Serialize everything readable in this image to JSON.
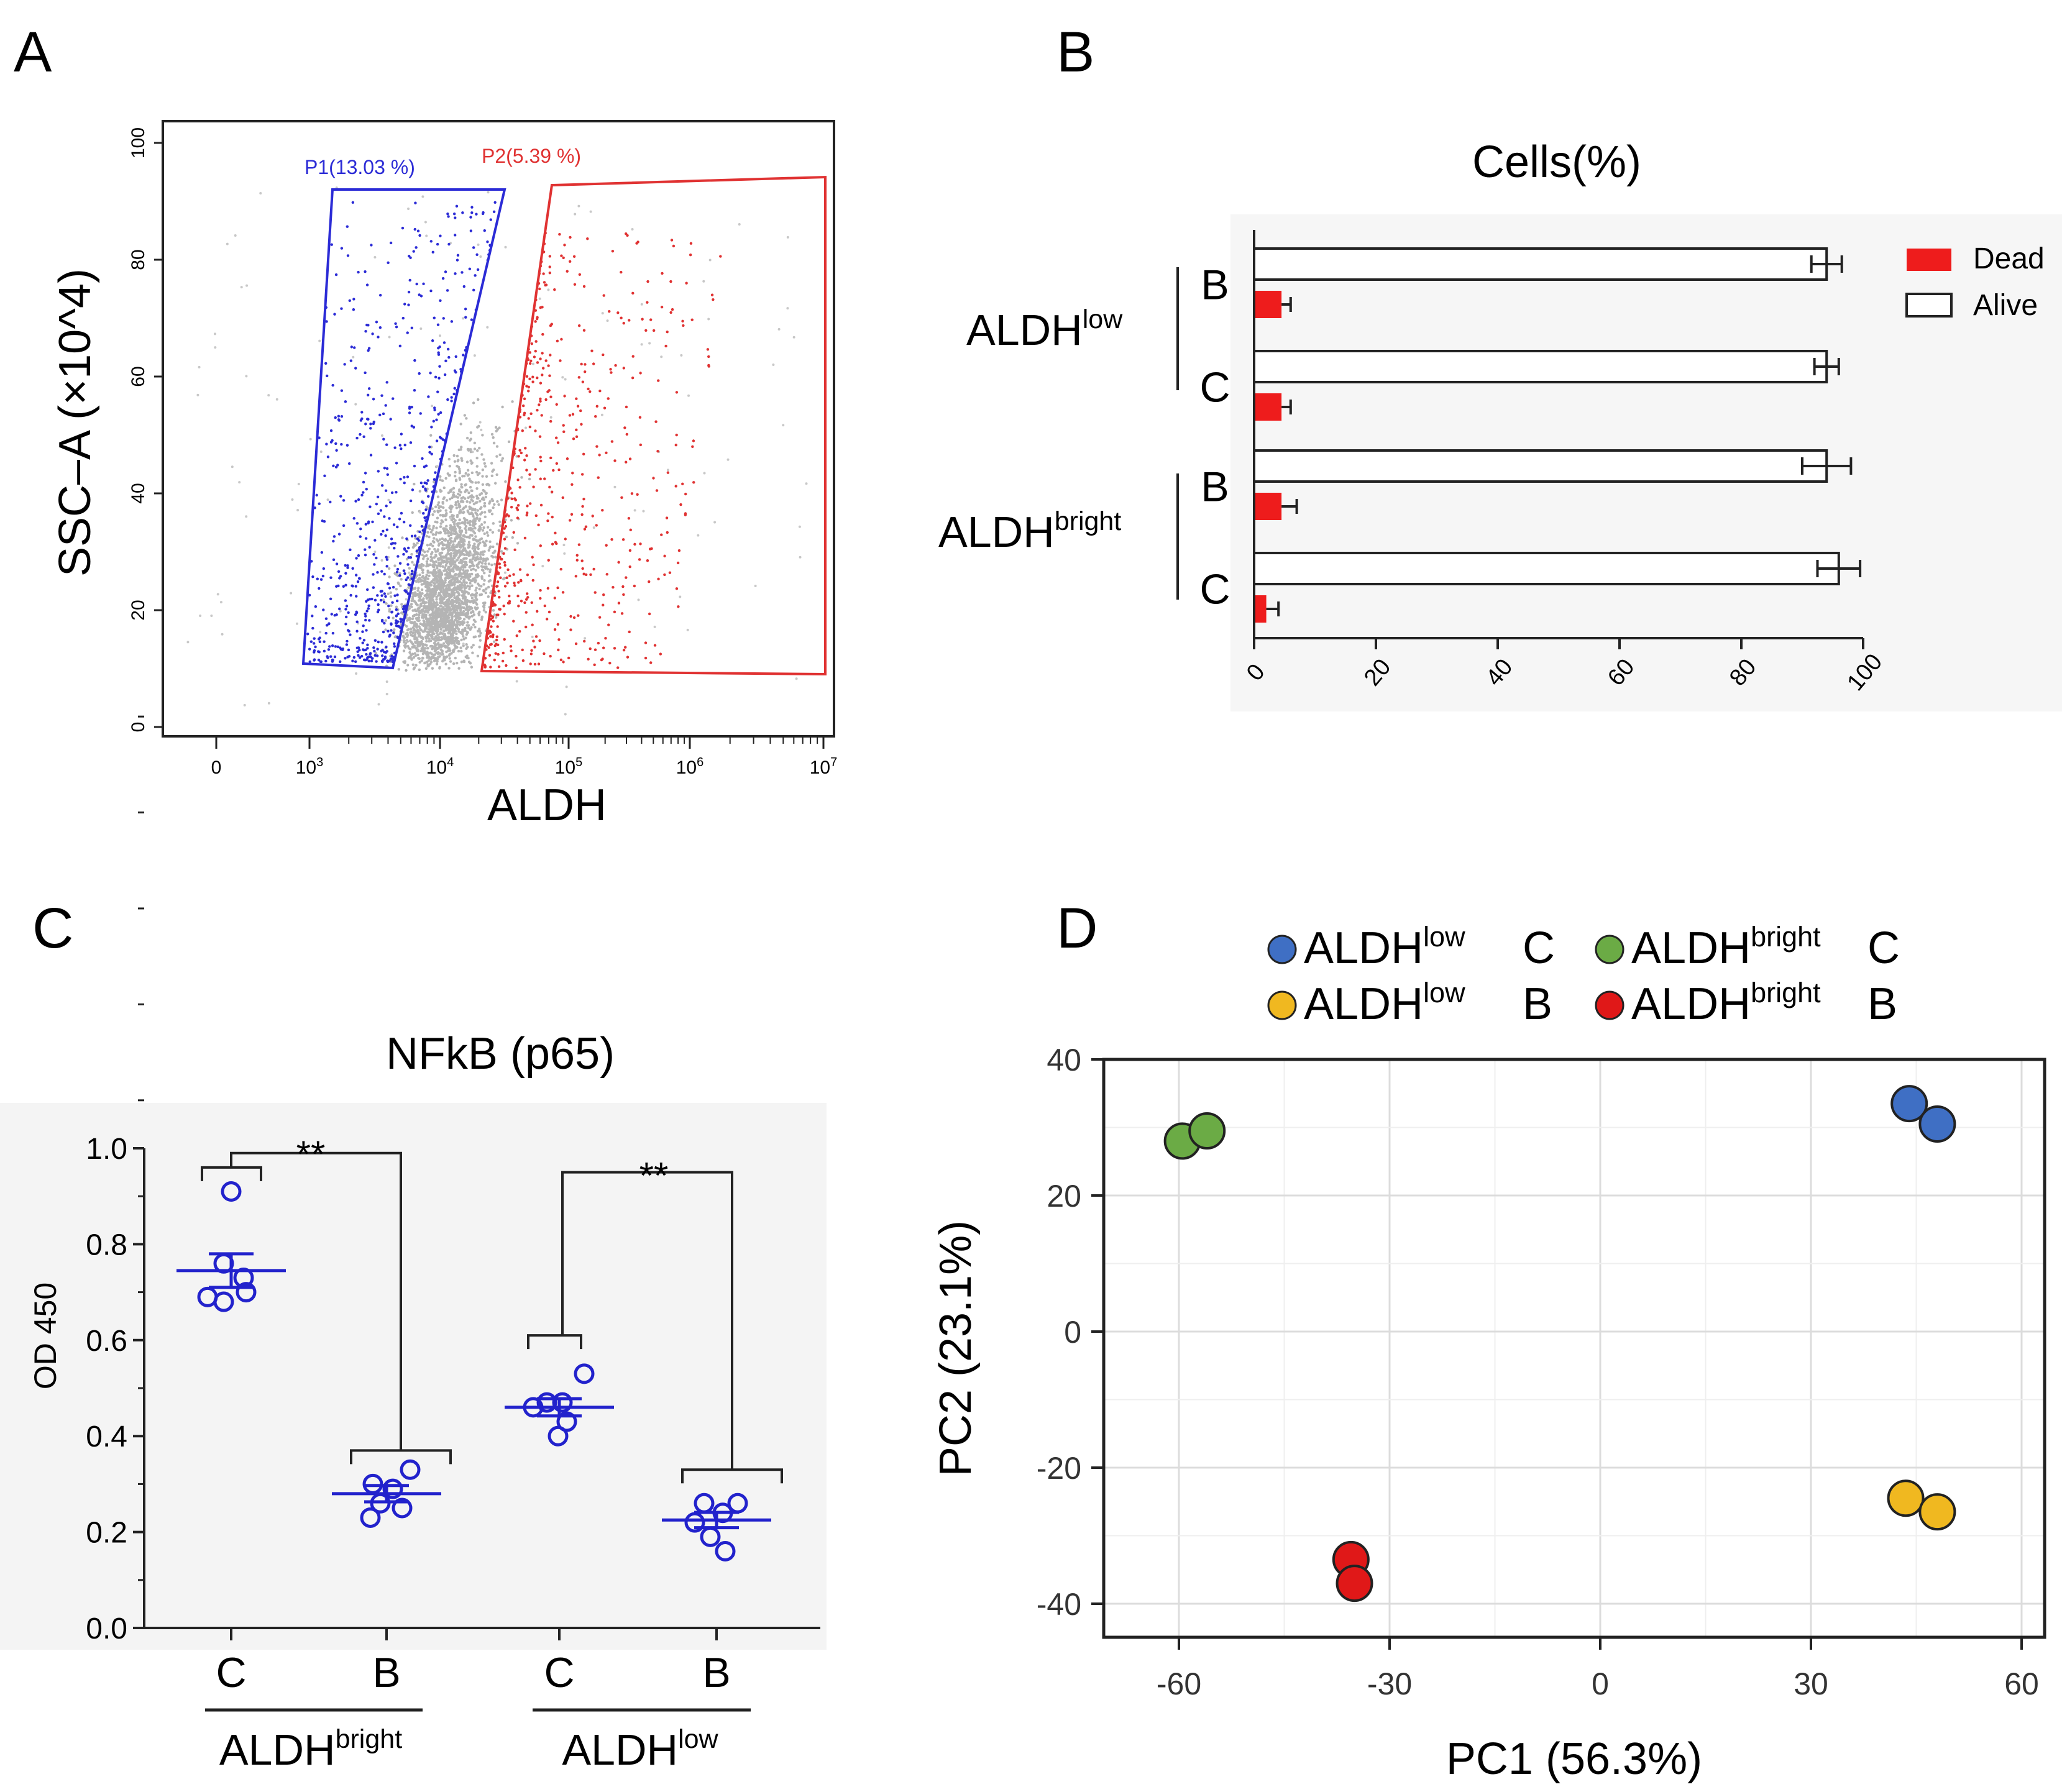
{
  "colors": {
    "blue_gate": "#2b2bd6",
    "red_gate": "#e03232",
    "grey_dots": "#b4b4b4",
    "bar_red": "#ee1c1c",
    "dot_blue": "#2222cc",
    "pca_blue": "#3f6fc4",
    "pca_green": "#6bab45",
    "pca_yellow": "#f0b820",
    "pca_red": "#e01818"
  },
  "chart_data": [
    {
      "panel": "A",
      "type": "scatter",
      "xlabel": "ALDH",
      "ylabel": "SSC–A (×10^4)",
      "ylim": [
        0,
        100
      ],
      "yticks": [
        "0",
        "20",
        "40",
        "60",
        "80",
        "100"
      ],
      "xticks": [
        {
          "base": "0",
          "exp": ""
        },
        {
          "base": "10",
          "exp": "3"
        },
        {
          "base": "10",
          "exp": "4"
        },
        {
          "base": "10",
          "exp": "5"
        },
        {
          "base": "10",
          "exp": "6"
        },
        {
          "base": "10",
          "exp": "7"
        }
      ],
      "gates": [
        {
          "name": "P1",
          "label": "P1(13.03 %)",
          "percent": 13.03,
          "color": "blue"
        },
        {
          "name": "P2",
          "label": "P2(5.39 %)",
          "percent": 5.39,
          "color": "red"
        }
      ]
    },
    {
      "panel": "B",
      "type": "bar",
      "orientation": "horizontal",
      "title": "Cells(%)",
      "xlim": [
        0,
        100
      ],
      "xticks": [
        "0",
        "20",
        "40",
        "60",
        "80",
        "100"
      ],
      "groups": [
        {
          "base": "ALDH",
          "sup": "low",
          "conditions": [
            {
              "label": "B",
              "alive": 94,
              "alive_err": 2.5,
              "dead": 4.5,
              "dead_err": 1.5
            },
            {
              "label": "C",
              "alive": 94,
              "alive_err": 2.0,
              "dead": 4.5,
              "dead_err": 1.5
            }
          ]
        },
        {
          "base": "ALDH",
          "sup": "bright",
          "conditions": [
            {
              "label": "B",
              "alive": 94,
              "alive_err": 4.0,
              "dead": 4.5,
              "dead_err": 2.5
            },
            {
              "label": "C",
              "alive": 96,
              "alive_err": 3.5,
              "dead": 2.0,
              "dead_err": 2.0
            }
          ]
        }
      ],
      "legend": [
        {
          "label": "Dead",
          "style": "filled"
        },
        {
          "label": "Alive",
          "style": "open"
        }
      ]
    },
    {
      "panel": "C",
      "type": "scatter",
      "title": "NFkB (p65)",
      "ylabel": "OD 450",
      "ylim": [
        0,
        1.0
      ],
      "yticks": [
        "0.0",
        "0.2",
        "0.4",
        "0.6",
        "0.8",
        "1.0"
      ],
      "groups": [
        {
          "label": "C",
          "points": [
            0.91,
            0.76,
            0.73,
            0.69,
            0.68,
            0.7
          ],
          "mean": 0.745,
          "sem": 0.035
        },
        {
          "label": "B",
          "points": [
            0.33,
            0.3,
            0.29,
            0.26,
            0.23,
            0.25
          ],
          "mean": 0.28,
          "sem": 0.017
        },
        {
          "label": "C",
          "points": [
            0.53,
            0.47,
            0.47,
            0.46,
            0.43,
            0.4
          ],
          "mean": 0.46,
          "sem": 0.018
        },
        {
          "label": "B",
          "points": [
            0.26,
            0.26,
            0.24,
            0.22,
            0.19,
            0.16
          ],
          "mean": 0.225,
          "sem": 0.016
        }
      ],
      "group_labels": [
        {
          "base": "ALDH",
          "sup": "bright"
        },
        {
          "base": "ALDH",
          "sup": "low"
        }
      ],
      "significance": [
        "**",
        "**"
      ]
    },
    {
      "panel": "D",
      "type": "scatter",
      "xlabel": "PC1 (56.3%)",
      "ylabel": "PC2 (23.1%)",
      "xlim": [
        -70,
        60
      ],
      "ylim": [
        -43,
        40
      ],
      "xticks": [
        "-60",
        "-30",
        "0",
        "30",
        "60"
      ],
      "yticks": [
        "40",
        "20",
        "0",
        "-20",
        "-40"
      ],
      "series": [
        {
          "base": "ALDH",
          "sup": "low",
          "cond": "C",
          "color": "blue",
          "points": [
            [
              44,
              33.5
            ],
            [
              48,
              30.5
            ]
          ]
        },
        {
          "base": "ALDH",
          "sup": "bright",
          "cond": "C",
          "color": "green",
          "points": [
            [
              -59.5,
              28
            ],
            [
              -56,
              29.5
            ]
          ]
        },
        {
          "base": "ALDH",
          "sup": "low",
          "cond": "B",
          "color": "yellow",
          "points": [
            [
              43.5,
              -24.5
            ],
            [
              48,
              -26.5
            ]
          ]
        },
        {
          "base": "ALDH",
          "sup": "bright",
          "cond": "B",
          "color": "red",
          "points": [
            [
              -35.5,
              -33.5
            ],
            [
              -35,
              -37
            ]
          ]
        }
      ]
    }
  ],
  "panels": {
    "a": "A",
    "b": "B",
    "c": "C",
    "d": "D"
  }
}
